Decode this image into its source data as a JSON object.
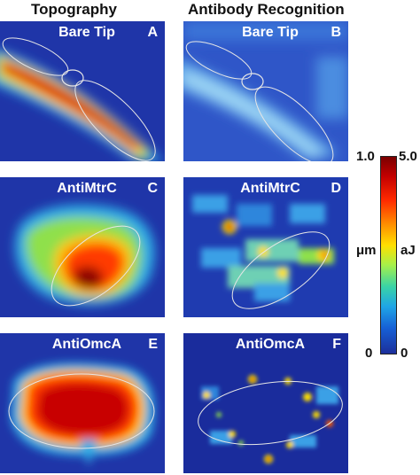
{
  "headings": {
    "left": "Topography",
    "right": "Antibody Recognition"
  },
  "panels": [
    {
      "title": "Bare Tip",
      "letter": "A"
    },
    {
      "title": "Bare Tip",
      "letter": "B"
    },
    {
      "title": "AntiMtrC",
      "letter": "C"
    },
    {
      "title": "AntiMtrC",
      "letter": "D"
    },
    {
      "title": "AntiOmcA",
      "letter": "E"
    },
    {
      "title": "AntiOmcA",
      "letter": "F"
    }
  ],
  "scale": {
    "left_top": "1.0",
    "left_bottom": "0",
    "left_unit": "μm",
    "right_top": "5.0",
    "right_bottom": "0",
    "right_unit": "aJ"
  },
  "colors": {
    "background_blue": "#1c2fa3",
    "hot_red": "#d10000",
    "outline": "#e6e6e6"
  }
}
